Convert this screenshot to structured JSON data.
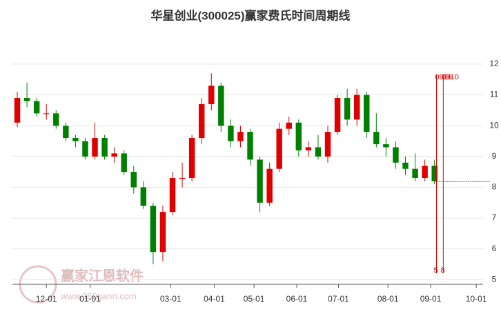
{
  "chart_data": {
    "type": "candlestick",
    "title": "华星创业(300025)赢家费氏时间周期线",
    "watermark": "赢家江恩软件",
    "watermark_url": "www.360gann.com",
    "up_color": "#e00000",
    "down_color": "#008000",
    "x": [
      0,
      1,
      2,
      3,
      4,
      5,
      6,
      7,
      8,
      9,
      10,
      11,
      12,
      13,
      14,
      15,
      16,
      17,
      18,
      19,
      20,
      21,
      22,
      23,
      24,
      25,
      26,
      27,
      28,
      29,
      30,
      31,
      32,
      33,
      34,
      35,
      36,
      37,
      38,
      39,
      40,
      41,
      42,
      43
    ],
    "open": [
      10.1,
      10.9,
      10.8,
      10.4,
      10.4,
      10.0,
      9.6,
      9.5,
      9.0,
      9.6,
      9.0,
      9.1,
      8.5,
      8.0,
      7.4,
      5.9,
      7.2,
      8.3,
      8.3,
      9.6,
      10.7,
      11.3,
      10.0,
      9.5,
      9.8,
      8.9,
      7.5,
      8.6,
      9.9,
      10.1,
      9.2,
      9.3,
      9.0,
      9.8,
      10.9,
      10.2,
      11.0,
      9.8,
      9.4,
      9.3,
      8.8,
      8.6,
      8.3,
      8.7
    ],
    "high": [
      11.1,
      11.4,
      10.9,
      10.7,
      10.5,
      10.1,
      9.7,
      9.6,
      10.1,
      9.7,
      9.3,
      9.2,
      8.7,
      8.2,
      7.5,
      7.4,
      8.5,
      8.8,
      9.7,
      10.9,
      11.7,
      11.4,
      10.2,
      10.0,
      9.9,
      9.0,
      8.8,
      10.1,
      10.3,
      10.2,
      9.5,
      9.7,
      10.0,
      11.0,
      11.2,
      11.2,
      11.1,
      10.4,
      9.6,
      9.5,
      9.0,
      9.1,
      8.9,
      8.9
    ],
    "low": [
      9.95,
      10.6,
      10.3,
      10.2,
      9.9,
      9.5,
      9.3,
      8.9,
      8.9,
      8.9,
      8.8,
      8.4,
      7.8,
      7.3,
      5.5,
      5.6,
      7.1,
      8.0,
      8.2,
      9.4,
      10.5,
      9.8,
      9.3,
      9.3,
      8.7,
      7.2,
      7.4,
      8.5,
      9.7,
      9.0,
      9.0,
      8.9,
      8.8,
      9.7,
      10.0,
      10.0,
      9.6,
      9.3,
      9.0,
      8.6,
      8.4,
      8.2,
      8.2,
      8.1
    ],
    "close": [
      10.9,
      10.8,
      10.4,
      10.4,
      10.0,
      9.6,
      9.5,
      9.0,
      9.6,
      9.0,
      9.1,
      8.5,
      8.0,
      7.4,
      5.9,
      7.2,
      8.3,
      8.3,
      9.6,
      10.7,
      11.3,
      10.0,
      9.5,
      9.8,
      8.9,
      7.5,
      8.6,
      9.9,
      10.1,
      9.2,
      9.3,
      9.0,
      9.8,
      10.9,
      10.2,
      11.0,
      9.8,
      9.4,
      9.3,
      8.8,
      8.6,
      8.3,
      8.7,
      8.2
    ],
    "xlim": [
      -0.5,
      48
    ],
    "xticks": [
      {
        "value": 3,
        "label": "12-01"
      },
      {
        "value": 7.5,
        "label": "01-01"
      },
      {
        "value": 15.8,
        "label": "03-01"
      },
      {
        "value": 20.3,
        "label": "04-01"
      },
      {
        "value": 24.4,
        "label": "05-01"
      },
      {
        "value": 28.8,
        "label": "06-01"
      },
      {
        "value": 33.1,
        "label": "07-01"
      },
      {
        "value": 38.2,
        "label": "08-01"
      },
      {
        "value": 42.6,
        "label": "09-01"
      },
      {
        "value": 47.3,
        "label": "10-01"
      }
    ],
    "ylim": [
      4.85,
      12.2
    ],
    "yticks": [
      5,
      6,
      7,
      8,
      9,
      10,
      11,
      12
    ],
    "grid": true,
    "cycle_color": "#e00000",
    "cycle_lines": [
      {
        "x": 43.2,
        "date": "0906",
        "days": 5
      },
      {
        "x": 43.9,
        "date": "0910",
        "days": 8
      }
    ]
  }
}
